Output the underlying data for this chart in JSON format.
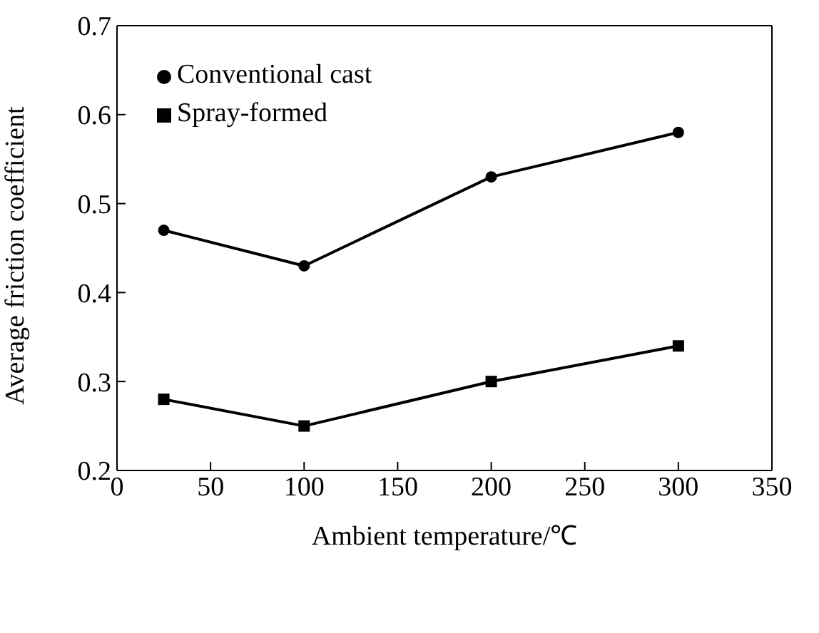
{
  "chart_data": {
    "type": "line",
    "xlabel": "Ambient temperature/℃",
    "ylabel": "Average friction coefficient",
    "x": [
      25,
      100,
      200,
      300
    ],
    "series": [
      {
        "name": "Spray-formed",
        "color": "#000000",
        "marker": "square",
        "values": [
          0.28,
          0.25,
          0.3,
          0.34
        ]
      },
      {
        "name": "Conventional cast",
        "color": "#000000",
        "marker": "circle",
        "values": [
          0.47,
          0.43,
          0.53,
          0.58
        ]
      }
    ],
    "xlim": [
      0,
      350
    ],
    "xticks": [
      0,
      50,
      100,
      150,
      200,
      250,
      300,
      350
    ],
    "ylim": [
      0.2,
      0.7
    ],
    "yticks": [
      0.2,
      0.3,
      0.4,
      0.5,
      0.6,
      0.7
    ],
    "legend": "top left",
    "line_style": "solid",
    "grid": false
  }
}
